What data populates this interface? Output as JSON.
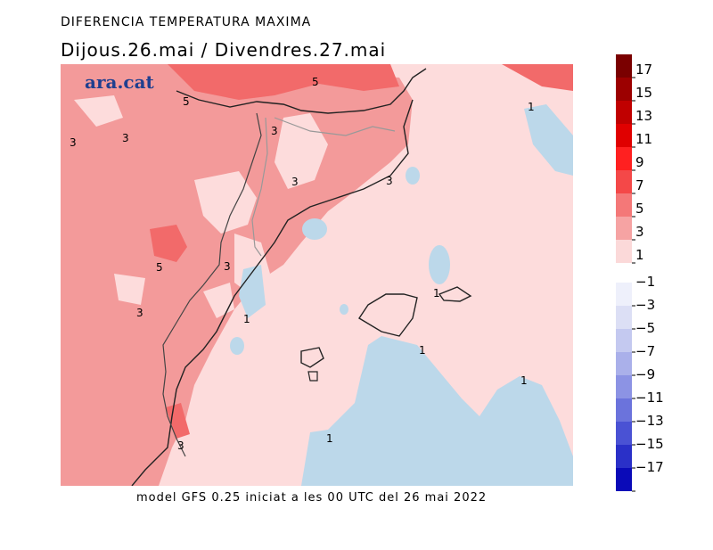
{
  "header": {
    "title": "DIFERENCIA TEMPERATURA MAXIMA",
    "date_range": "Dijous.26.mai  /  Divendres.27.mai"
  },
  "logo": {
    "text": "ara.cat"
  },
  "footer": {
    "text": "model GFS 0.25 iniciat a les 00 UTC del 26 mai 2022"
  },
  "contour_labels": [
    "5",
    "5",
    "3",
    "3",
    "3",
    "3",
    "3",
    "5",
    "3",
    "3",
    "1",
    "1",
    "1",
    "1",
    "1",
    "1",
    "3"
  ],
  "legend": {
    "positive": [
      {
        "label": "17",
        "color": "#7a0000"
      },
      {
        "label": "15",
        "color": "#9c0000"
      },
      {
        "label": "13",
        "color": "#c00000"
      },
      {
        "label": "11",
        "color": "#e00000"
      },
      {
        "label": "9",
        "color": "#ff2020"
      },
      {
        "label": "7",
        "color": "#f44848"
      },
      {
        "label": "5",
        "color": "#f47878"
      },
      {
        "label": "3",
        "color": "#f6a3a3"
      },
      {
        "label": "1",
        "color": "#fbd9d9"
      }
    ],
    "negative": [
      {
        "label": "−1",
        "color": "#eef0fb"
      },
      {
        "label": "−3",
        "color": "#dcdff5"
      },
      {
        "label": "−5",
        "color": "#c4c9f0"
      },
      {
        "label": "−7",
        "color": "#aab0ea"
      },
      {
        "label": "−9",
        "color": "#8c93e4"
      },
      {
        "label": "−11",
        "color": "#6b73dc"
      },
      {
        "label": "−13",
        "color": "#4a52d4"
      },
      {
        "label": "−15",
        "color": "#2a30c8"
      },
      {
        "label": "−17",
        "color": "#0a0ab8"
      }
    ]
  },
  "colors": {
    "sea_light_pink": "#fddcdc",
    "land_pink": "#f39a9a",
    "warm_pink": "#f58282",
    "hot_red": "#f26a6a",
    "cool_blue": "#bcd8ea"
  }
}
